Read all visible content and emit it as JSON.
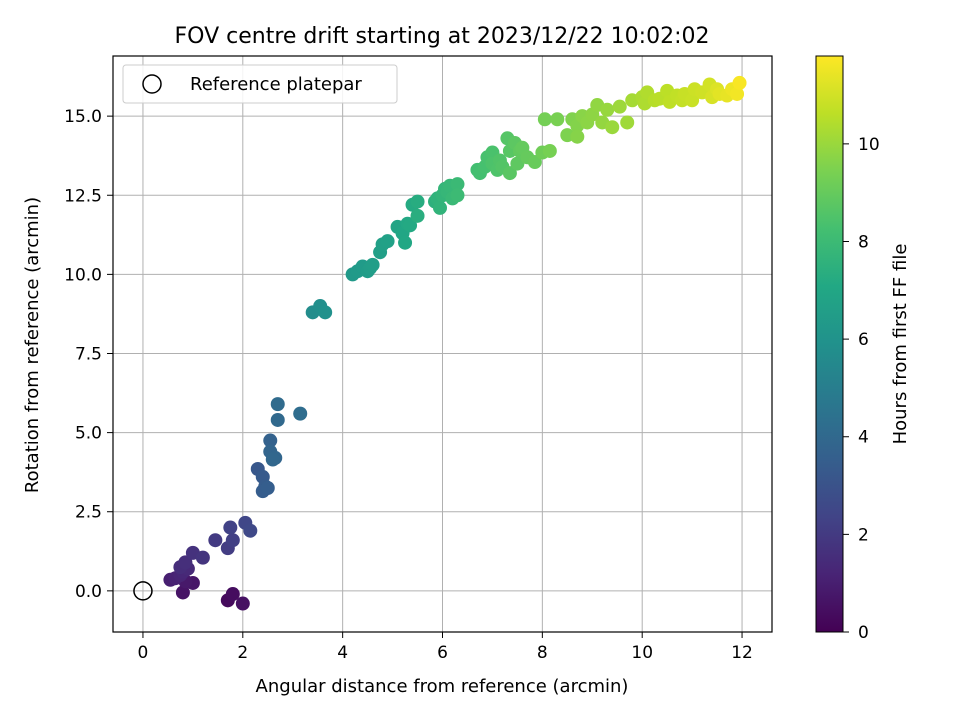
{
  "chart_data": {
    "type": "scatter",
    "title": "FOV centre drift starting at 2023/12/22 10:02:02",
    "xlabel": "Angular distance from reference (arcmin)",
    "ylabel": "Rotation from reference (arcmin)",
    "xlim": [
      -0.6,
      12.6
    ],
    "ylim": [
      -1.3,
      16.9
    ],
    "xticks": [
      0,
      2,
      4,
      6,
      8,
      10,
      12
    ],
    "xtick_labels": [
      "0",
      "2",
      "4",
      "6",
      "8",
      "10",
      "12"
    ],
    "yticks": [
      0.0,
      2.5,
      5.0,
      7.5,
      10.0,
      12.5,
      15.0
    ],
    "ytick_labels": [
      "0.0",
      "2.5",
      "5.0",
      "7.5",
      "10.0",
      "12.5",
      "15.0"
    ],
    "grid": true,
    "legend": {
      "position": "top-left",
      "entries": [
        "Reference platepar"
      ]
    },
    "reference_point": {
      "x": 0,
      "y": 0
    },
    "colorbar": {
      "label": "Hours from first FF file",
      "colormap": "viridis",
      "range": [
        0,
        11.8
      ],
      "ticks": [
        0,
        2,
        4,
        6,
        8,
        10
      ],
      "tick_labels": [
        "0",
        "2",
        "4",
        "6",
        "8",
        "10"
      ]
    },
    "series": [
      {
        "values": [
          [
            1.7,
            -0.3,
            0.3
          ],
          [
            1.8,
            -0.1,
            0.4
          ],
          [
            2.0,
            -0.4,
            0.5
          ],
          [
            0.8,
            -0.05,
            0.6
          ],
          [
            1.0,
            0.25,
            0.7
          ],
          [
            0.85,
            0.3,
            0.8
          ],
          [
            0.55,
            0.35,
            1.0
          ],
          [
            0.65,
            0.4,
            1.1
          ],
          [
            0.75,
            0.5,
            1.2
          ],
          [
            0.8,
            0.6,
            1.3
          ],
          [
            0.9,
            0.7,
            1.4
          ],
          [
            0.75,
            0.75,
            1.5
          ],
          [
            0.85,
            0.9,
            1.6
          ],
          [
            1.0,
            1.2,
            1.7
          ],
          [
            1.2,
            1.05,
            1.8
          ],
          [
            1.45,
            1.6,
            2.0
          ],
          [
            1.7,
            1.35,
            2.1
          ],
          [
            1.8,
            1.6,
            2.2
          ],
          [
            1.75,
            2.0,
            2.3
          ],
          [
            2.05,
            2.15,
            2.5
          ],
          [
            2.15,
            1.9,
            2.6
          ],
          [
            2.3,
            3.85,
            3.2
          ],
          [
            2.4,
            3.6,
            3.3
          ],
          [
            2.45,
            3.3,
            3.4
          ],
          [
            2.4,
            3.15,
            3.45
          ],
          [
            2.5,
            3.25,
            3.5
          ],
          [
            2.55,
            4.75,
            3.7
          ],
          [
            2.55,
            4.4,
            3.8
          ],
          [
            2.65,
            4.2,
            3.85
          ],
          [
            2.6,
            4.15,
            3.9
          ],
          [
            2.7,
            5.4,
            4.0
          ],
          [
            2.7,
            5.9,
            4.1
          ],
          [
            3.15,
            5.6,
            4.2
          ],
          [
            3.4,
            8.8,
            5.7
          ],
          [
            3.55,
            9.0,
            5.8
          ],
          [
            3.65,
            8.8,
            5.9
          ],
          [
            4.2,
            10.0,
            6.3
          ],
          [
            4.3,
            10.1,
            6.35
          ],
          [
            4.4,
            10.25,
            6.4
          ],
          [
            4.5,
            10.1,
            6.45
          ],
          [
            4.55,
            10.2,
            6.5
          ],
          [
            4.6,
            10.3,
            6.55
          ],
          [
            4.75,
            10.7,
            6.6
          ],
          [
            4.8,
            10.95,
            6.65
          ],
          [
            4.9,
            11.05,
            6.7
          ],
          [
            5.1,
            11.5,
            6.9
          ],
          [
            5.2,
            11.3,
            7.0
          ],
          [
            5.25,
            11.0,
            7.05
          ],
          [
            5.3,
            11.6,
            7.1
          ],
          [
            5.35,
            11.55,
            7.15
          ],
          [
            5.4,
            12.2,
            7.2
          ],
          [
            5.5,
            12.3,
            7.3
          ],
          [
            5.5,
            11.85,
            7.35
          ],
          [
            5.85,
            12.3,
            7.5
          ],
          [
            5.9,
            12.4,
            7.6
          ],
          [
            5.95,
            12.1,
            7.65
          ],
          [
            6.0,
            12.5,
            7.7
          ],
          [
            6.05,
            12.7,
            7.75
          ],
          [
            6.1,
            12.6,
            7.8
          ],
          [
            6.15,
            12.8,
            7.85
          ],
          [
            6.2,
            12.4,
            7.9
          ],
          [
            6.3,
            12.85,
            7.95
          ],
          [
            6.3,
            12.5,
            8.0
          ],
          [
            6.7,
            13.3,
            8.2
          ],
          [
            6.75,
            13.2,
            8.25
          ],
          [
            6.85,
            13.4,
            8.3
          ],
          [
            6.9,
            13.7,
            8.35
          ],
          [
            7.0,
            13.85,
            8.4
          ],
          [
            7.0,
            13.5,
            8.45
          ],
          [
            7.1,
            13.3,
            8.5
          ],
          [
            7.15,
            13.6,
            8.55
          ],
          [
            7.2,
            13.4,
            8.6
          ],
          [
            7.3,
            14.3,
            8.65
          ],
          [
            7.35,
            13.9,
            8.7
          ],
          [
            7.35,
            13.2,
            8.75
          ],
          [
            7.45,
            14.15,
            8.8
          ],
          [
            7.5,
            13.5,
            8.85
          ],
          [
            7.55,
            13.9,
            8.9
          ],
          [
            7.6,
            14.0,
            8.95
          ],
          [
            7.7,
            13.7,
            9.0
          ],
          [
            7.85,
            13.55,
            9.05
          ],
          [
            8.0,
            13.85,
            9.2
          ],
          [
            8.05,
            14.9,
            9.3
          ],
          [
            8.15,
            13.9,
            9.35
          ],
          [
            8.3,
            14.9,
            9.4
          ],
          [
            8.5,
            14.4,
            9.5
          ],
          [
            8.6,
            14.9,
            9.55
          ],
          [
            8.7,
            14.7,
            9.6
          ],
          [
            8.7,
            14.35,
            9.65
          ],
          [
            8.8,
            15.0,
            9.7
          ],
          [
            8.9,
            14.8,
            9.75
          ],
          [
            9.0,
            15.05,
            9.8
          ],
          [
            9.1,
            15.35,
            9.85
          ],
          [
            9.2,
            14.8,
            9.9
          ],
          [
            9.3,
            15.2,
            9.95
          ],
          [
            9.4,
            14.65,
            10.0
          ],
          [
            9.55,
            15.3,
            10.05
          ],
          [
            9.7,
            14.8,
            10.1
          ],
          [
            9.8,
            15.5,
            10.2
          ],
          [
            10.0,
            15.6,
            10.3
          ],
          [
            10.05,
            15.4,
            10.35
          ],
          [
            10.1,
            15.75,
            10.4
          ],
          [
            10.25,
            15.5,
            10.5
          ],
          [
            10.35,
            15.55,
            10.55
          ],
          [
            10.5,
            15.8,
            10.6
          ],
          [
            10.55,
            15.45,
            10.65
          ],
          [
            10.7,
            15.65,
            10.7
          ],
          [
            10.8,
            15.5,
            10.75
          ],
          [
            10.85,
            15.7,
            10.8
          ],
          [
            11.0,
            15.5,
            10.85
          ],
          [
            11.05,
            15.85,
            10.9
          ],
          [
            11.2,
            15.75,
            10.95
          ],
          [
            11.35,
            16.0,
            11.0
          ],
          [
            11.4,
            15.6,
            11.1
          ],
          [
            11.5,
            15.85,
            11.2
          ],
          [
            11.55,
            15.7,
            11.3
          ],
          [
            11.7,
            15.65,
            11.4
          ],
          [
            11.8,
            15.85,
            11.5
          ],
          [
            11.9,
            15.7,
            11.6
          ],
          [
            11.95,
            16.05,
            11.7
          ]
        ]
      }
    ]
  }
}
